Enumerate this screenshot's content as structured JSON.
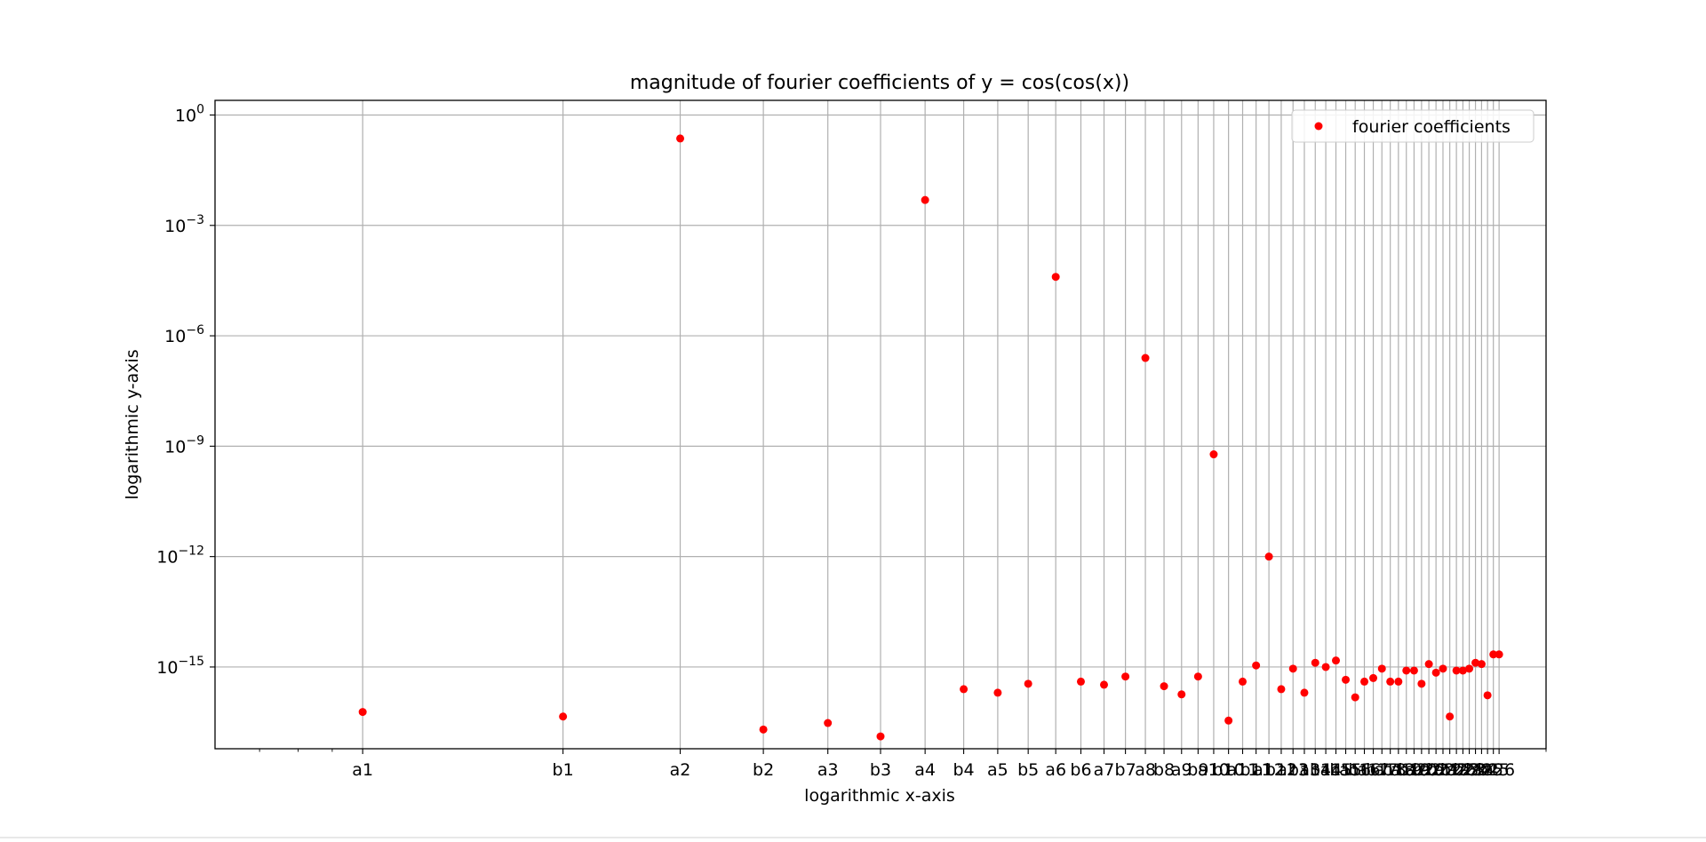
{
  "chart_data": {
    "type": "scatter",
    "title": "magnitude of fourier coefficients of y = cos(cos(x))",
    "xlabel": "logarithmic x-axis",
    "ylabel": "logarithmic y-axis",
    "xscale": "log",
    "yscale": "log",
    "xlim": [
      0.6,
      60
    ],
    "ylim": [
      6e-18,
      2.5
    ],
    "grid": true,
    "legend_position": "top-right",
    "y_ticks": [
      {
        "base": "10",
        "exponent": "0",
        "value": 1
      },
      {
        "base": "10",
        "exponent": "−3",
        "value": 0.001
      },
      {
        "base": "10",
        "exponent": "−6",
        "value": 1e-06
      },
      {
        "base": "10",
        "exponent": "−9",
        "value": 1e-09
      },
      {
        "base": "10",
        "exponent": "−12",
        "value": 1e-12
      },
      {
        "base": "10",
        "exponent": "−15",
        "value": 1e-15
      }
    ],
    "x_tick_labels": [
      "a1",
      "b1",
      "a2",
      "b2",
      "a3",
      "b3",
      "a4",
      "b4",
      "a5",
      "b5",
      "a6",
      "b6",
      "a7",
      "b7",
      "a8",
      "b8",
      "a9",
      "b9",
      "a10",
      "b10",
      "a11",
      "b11",
      "a12",
      "b12",
      "a13",
      "b13",
      "a14",
      "b14",
      "a15",
      "b15",
      "a16",
      "b16",
      "a17",
      "b17",
      "a18",
      "b18",
      "a19",
      "b19",
      "a20",
      "b20",
      "a21",
      "b21",
      "a22",
      "b22",
      "a23",
      "b23",
      "a24",
      "b24",
      "a25",
      "b25",
      "a26"
    ],
    "series": [
      {
        "name": "fourier coefficients",
        "color": "#ff0000",
        "marker": "circle",
        "x": [
          1,
          2,
          3,
          4,
          5,
          6,
          7,
          8,
          9,
          10,
          11,
          12,
          13,
          14,
          15,
          16,
          17,
          18,
          19,
          20,
          21,
          22,
          23,
          24,
          25,
          26,
          27,
          28,
          29,
          30,
          31,
          32,
          33,
          34,
          35,
          36,
          37,
          38,
          39,
          40,
          41,
          42,
          43,
          44,
          45,
          46,
          47,
          48,
          49,
          50,
          51
        ],
        "y": [
          6e-17,
          4.5e-17,
          0.23,
          2e-17,
          3e-17,
          1.3e-17,
          0.0049,
          2.5e-16,
          2e-16,
          3.5e-16,
          4e-05,
          4e-16,
          3.3e-16,
          5.5e-16,
          2.5e-07,
          3e-16,
          1.8e-16,
          5.5e-16,
          6e-10,
          3.5e-17,
          4e-16,
          1.1e-15,
          1e-12,
          2.5e-16,
          9e-16,
          2e-16,
          1.3e-15,
          1e-15,
          1.5e-15,
          4.5e-16,
          1.5e-16,
          4e-16,
          5e-16,
          9e-16,
          4e-16,
          4e-16,
          8e-16,
          8e-16,
          3.5e-16,
          1.2e-15,
          7e-16,
          9e-16,
          4.5e-17,
          8e-16,
          8e-16,
          9e-16,
          1.3e-15,
          1.2e-15,
          1.7e-16,
          2.2e-15,
          2.2e-15
        ]
      }
    ]
  }
}
